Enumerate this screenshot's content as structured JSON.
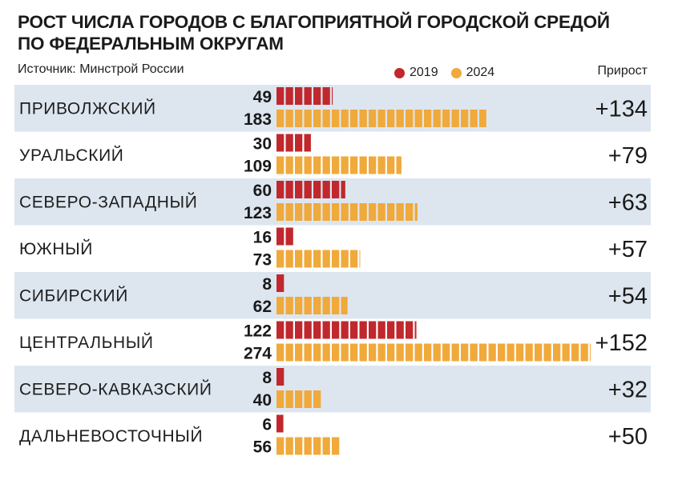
{
  "header": {
    "title_line1": "РОСТ ЧИСЛА ГОРОДОВ С БЛАГОПРИЯТНОЙ ГОРОДСКОЙ СРЕДОЙ",
    "title_line2": "ПО ФЕДЕРАЛЬНЫМ ОКРУГАМ",
    "source": "Источник: Минстрой России",
    "growth_header": "Прирост"
  },
  "colors": {
    "series_2019": "#c0282d",
    "series_2024": "#f0a93b",
    "band": "#dde6ef"
  },
  "chart_data": {
    "type": "bar",
    "orientation": "horizontal",
    "title": "РОСТ ЧИСЛА ГОРОДОВ С БЛАГОПРИЯТНОЙ ГОРОДСКОЙ СРЕДОЙ ПО ФЕДЕРАЛЬНЫМ ОКРУГАМ",
    "legend_position": "top-right",
    "categories": [
      "ПРИВОЛЖСКИЙ",
      "УРАЛЬСКИЙ",
      "СЕВЕРО-ЗАПАДНЫЙ",
      "ЮЖНЫЙ",
      "СИБИРСКИЙ",
      "ЦЕНТРАЛЬНЫЙ",
      "СЕВЕРО-КАВКАЗСКИЙ",
      "ДАЛЬНЕВОСТОЧНЫЙ"
    ],
    "series": [
      {
        "name": "2019",
        "values": [
          49,
          30,
          60,
          16,
          8,
          122,
          8,
          6
        ]
      },
      {
        "name": "2024",
        "values": [
          183,
          109,
          123,
          73,
          62,
          274,
          40,
          56
        ]
      }
    ],
    "growth": [
      "+134",
      "+79",
      "+63",
      "+57",
      "+54",
      "+152",
      "+32",
      "+50"
    ],
    "xlim": [
      0,
      274
    ]
  }
}
